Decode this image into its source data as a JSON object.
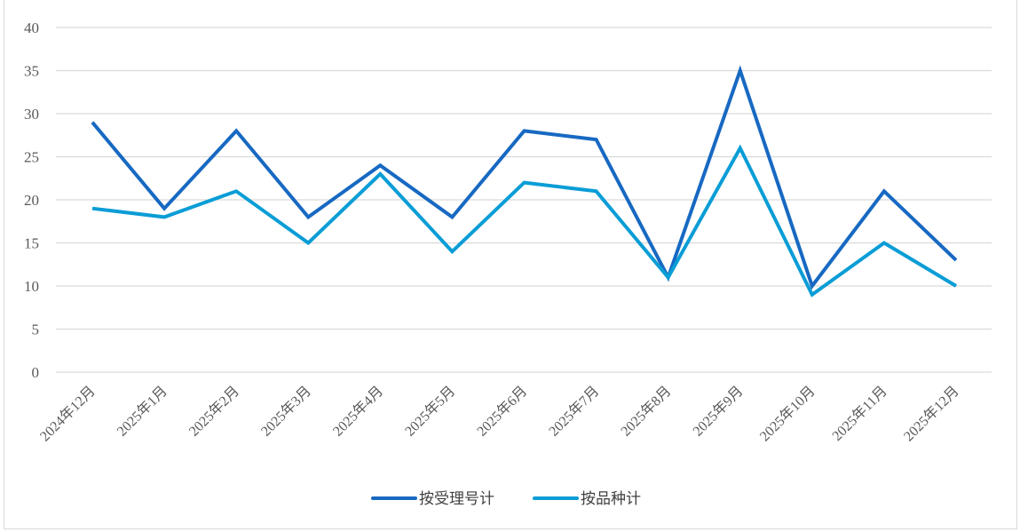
{
  "chart_data": {
    "type": "line",
    "categories": [
      "2024年12月",
      "2025年1月",
      "2025年2月",
      "2025年3月",
      "2025年4月",
      "2025年5月",
      "2025年6月",
      "2025年7月",
      "2025年8月",
      "2025年9月",
      "2025年10月",
      "2025年11月",
      "2025年12月"
    ],
    "series": [
      {
        "name": "按受理号计",
        "color": "#1769c2",
        "values": [
          29,
          19,
          28,
          18,
          24,
          18,
          28,
          27,
          11,
          35,
          10,
          21,
          13
        ]
      },
      {
        "name": "按品种计",
        "color": "#0a9dd6",
        "values": [
          19,
          18,
          21,
          15,
          23,
          14,
          22,
          21,
          11,
          26,
          9,
          15,
          10
        ]
      }
    ],
    "ylim": [
      0,
      40
    ],
    "yticks": [
      0,
      5,
      10,
      15,
      20,
      25,
      30,
      35,
      40
    ],
    "grid": true,
    "legend": "bottom"
  }
}
